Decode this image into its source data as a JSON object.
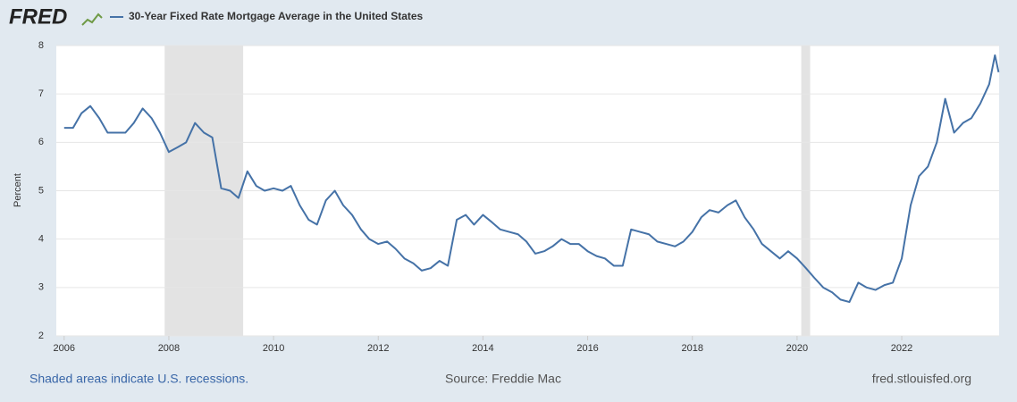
{
  "logo": "FRED",
  "chart_data": {
    "type": "line",
    "x": [
      2006,
      2006.17,
      2006.33,
      2006.5,
      2006.67,
      2006.83,
      2007,
      2007.17,
      2007.33,
      2007.5,
      2007.67,
      2007.83,
      2008,
      2008.17,
      2008.33,
      2008.5,
      2008.67,
      2008.83,
      2009,
      2009.17,
      2009.33,
      2009.5,
      2009.67,
      2009.83,
      2010,
      2010.17,
      2010.33,
      2010.5,
      2010.67,
      2010.83,
      2011,
      2011.17,
      2011.33,
      2011.5,
      2011.67,
      2011.83,
      2012,
      2012.17,
      2012.33,
      2012.5,
      2012.67,
      2012.83,
      2013,
      2013.17,
      2013.33,
      2013.5,
      2013.67,
      2013.83,
      2014,
      2014.17,
      2014.33,
      2014.5,
      2014.67,
      2014.83,
      2015,
      2015.17,
      2015.33,
      2015.5,
      2015.67,
      2015.83,
      2016,
      2016.17,
      2016.33,
      2016.5,
      2016.67,
      2016.83,
      2017,
      2017.17,
      2017.33,
      2017.5,
      2017.67,
      2017.83,
      2018,
      2018.17,
      2018.33,
      2018.5,
      2018.67,
      2018.83,
      2019,
      2019.17,
      2019.33,
      2019.5,
      2019.67,
      2019.83,
      2020,
      2020.17,
      2020.33,
      2020.5,
      2020.67,
      2020.83,
      2021,
      2021.17,
      2021.33,
      2021.5,
      2021.67,
      2021.83,
      2022,
      2022.17,
      2022.33,
      2022.5,
      2022.67,
      2022.83,
      2023,
      2023.17,
      2023.33,
      2023.5,
      2023.67,
      2023.78,
      2023.85
    ],
    "series": [
      {
        "name": "30-Year Fixed Rate Mortgage Average in the United States",
        "color": "#4572a7",
        "values": [
          6.3,
          6.3,
          6.6,
          6.75,
          6.5,
          6.2,
          6.2,
          6.2,
          6.4,
          6.7,
          6.5,
          6.2,
          5.8,
          5.9,
          6.0,
          6.4,
          6.2,
          6.1,
          5.05,
          5.0,
          4.85,
          5.4,
          5.1,
          5.0,
          5.05,
          5.0,
          5.1,
          4.7,
          4.4,
          4.3,
          4.8,
          5.0,
          4.7,
          4.5,
          4.2,
          4.0,
          3.9,
          3.95,
          3.8,
          3.6,
          3.5,
          3.35,
          3.4,
          3.55,
          3.45,
          4.4,
          4.5,
          4.3,
          4.5,
          4.35,
          4.2,
          4.15,
          4.1,
          3.95,
          3.7,
          3.75,
          3.85,
          4.0,
          3.9,
          3.9,
          3.75,
          3.65,
          3.6,
          3.45,
          3.45,
          4.2,
          4.15,
          4.1,
          3.95,
          3.9,
          3.85,
          3.95,
          4.15,
          4.45,
          4.6,
          4.55,
          4.7,
          4.8,
          4.45,
          4.2,
          3.9,
          3.75,
          3.6,
          3.75,
          3.6,
          3.4,
          3.2,
          3.0,
          2.9,
          2.75,
          2.7,
          3.1,
          3.0,
          2.95,
          3.05,
          3.1,
          3.6,
          4.7,
          5.3,
          5.5,
          6.0,
          6.9,
          6.2,
          6.4,
          6.5,
          6.8,
          7.2,
          7.8,
          7.45
        ]
      }
    ],
    "recessions": [
      [
        2007.92,
        2009.42
      ],
      [
        2020.08,
        2020.25
      ]
    ],
    "xlim": [
      2005.85,
      2023.86
    ],
    "xticks": [
      2006,
      2008,
      2010,
      2012,
      2014,
      2016,
      2018,
      2020,
      2022
    ],
    "ylim": [
      2,
      8
    ],
    "yticks": [
      2,
      3,
      4,
      5,
      6,
      7,
      8
    ],
    "grid": true,
    "ylabel": "Percent",
    "note": "Shaded areas indicate U.S. recessions.",
    "source": "Source: Freddie Mac",
    "site": "fred.stlouisfed.org"
  }
}
